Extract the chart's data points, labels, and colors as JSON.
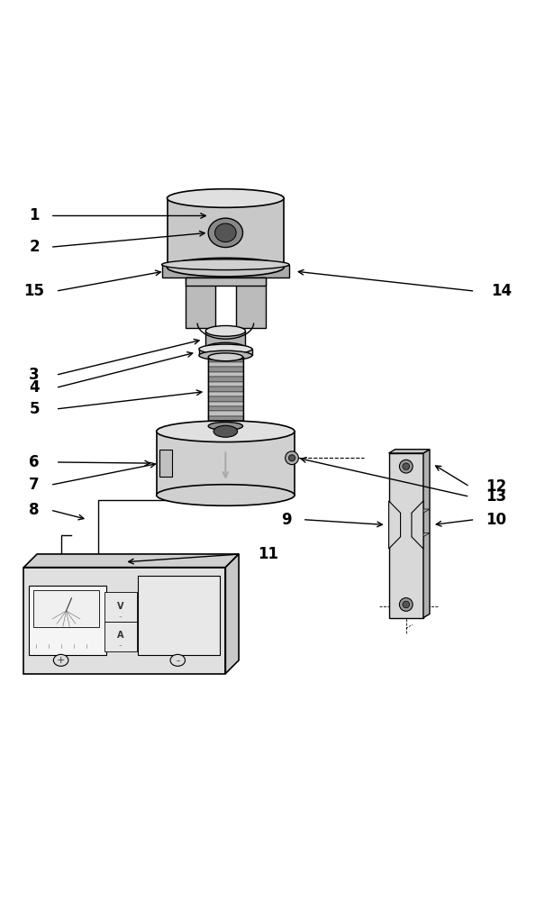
{
  "title": "",
  "background_color": "#ffffff",
  "line_color": "#000000",
  "fill_color_light": "#d0d0d0",
  "fill_color_medium": "#a0a0a0",
  "fill_color_dark": "#606060",
  "labels": {
    "1": [
      0.08,
      0.935,
      "1",
      0.22,
      0.935
    ],
    "2": [
      0.08,
      0.875,
      "2",
      0.22,
      0.875
    ],
    "14": [
      0.92,
      0.8,
      "14",
      0.68,
      0.8
    ],
    "15": [
      0.08,
      0.8,
      "15",
      0.38,
      0.8
    ],
    "3": [
      0.08,
      0.638,
      "3",
      0.32,
      0.638
    ],
    "4": [
      0.08,
      0.615,
      "4",
      0.32,
      0.615
    ],
    "5": [
      0.08,
      0.57,
      "5",
      0.32,
      0.585
    ],
    "6": [
      0.08,
      0.48,
      "6",
      0.32,
      0.476
    ],
    "7": [
      0.08,
      0.435,
      "7",
      0.26,
      0.435
    ],
    "8": [
      0.08,
      0.385,
      "8",
      0.22,
      0.395
    ],
    "11": [
      0.52,
      0.295,
      "11",
      0.38,
      0.295
    ],
    "12": [
      0.92,
      0.432,
      "12",
      0.74,
      0.432
    ],
    "13": [
      0.92,
      0.415,
      "13",
      0.72,
      0.415
    ],
    "9": [
      0.52,
      0.37,
      "9",
      0.62,
      0.38
    ],
    "10": [
      0.92,
      0.37,
      "10",
      0.77,
      0.38
    ]
  }
}
